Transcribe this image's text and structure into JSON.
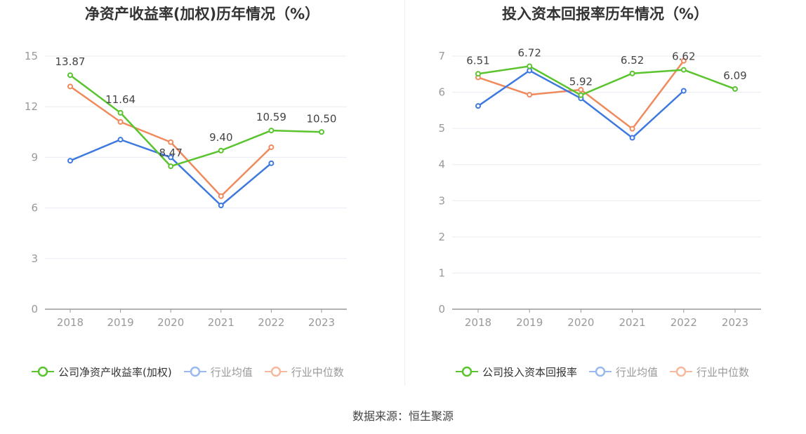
{
  "source": "数据来源：恒生聚源",
  "chart_data": [
    {
      "type": "line",
      "title": "净资产收益率(加权)历年情况（%）",
      "categories": [
        "2018",
        "2019",
        "2020",
        "2021",
        "2022",
        "2023"
      ],
      "ylim": [
        0,
        15
      ],
      "yticks": [
        0,
        3,
        6,
        9,
        12,
        15
      ],
      "grid": true,
      "legend_position": "bottom",
      "series": [
        {
          "name": "公司净资产收益率(加权)",
          "values": [
            13.87,
            11.64,
            8.47,
            9.4,
            10.59,
            10.5
          ],
          "labels": [
            "13.87",
            "11.64",
            "8.47",
            "9.40",
            "10.59",
            "10.50"
          ],
          "color": "#5ac42e"
        },
        {
          "name": "行业均值",
          "values": [
            8.8,
            10.05,
            9.0,
            6.15,
            8.65,
            null
          ],
          "color": "#3e79e0"
        },
        {
          "name": "行业中位数",
          "values": [
            13.2,
            11.1,
            9.9,
            6.7,
            9.6,
            null
          ],
          "color": "#f08a5d"
        }
      ]
    },
    {
      "type": "line",
      "title": "投入资本回报率历年情况（%）",
      "categories": [
        "2018",
        "2019",
        "2020",
        "2021",
        "2022",
        "2023"
      ],
      "ylim": [
        0,
        7
      ],
      "yticks": [
        0,
        1,
        2,
        3,
        4,
        5,
        6,
        7
      ],
      "grid": true,
      "legend_position": "bottom",
      "series": [
        {
          "name": "公司投入资本回报率",
          "values": [
            6.51,
            6.72,
            5.92,
            6.52,
            6.62,
            6.09
          ],
          "labels": [
            "6.51",
            "6.72",
            "5.92",
            "6.52",
            "6.62",
            "6.09"
          ],
          "color": "#5ac42e"
        },
        {
          "name": "行业均值",
          "values": [
            5.62,
            6.6,
            5.83,
            4.74,
            6.04,
            null
          ],
          "color": "#3e79e0"
        },
        {
          "name": "行业中位数",
          "values": [
            6.41,
            5.93,
            6.07,
            4.99,
            6.87,
            null
          ],
          "color": "#f08a5d"
        }
      ]
    }
  ]
}
